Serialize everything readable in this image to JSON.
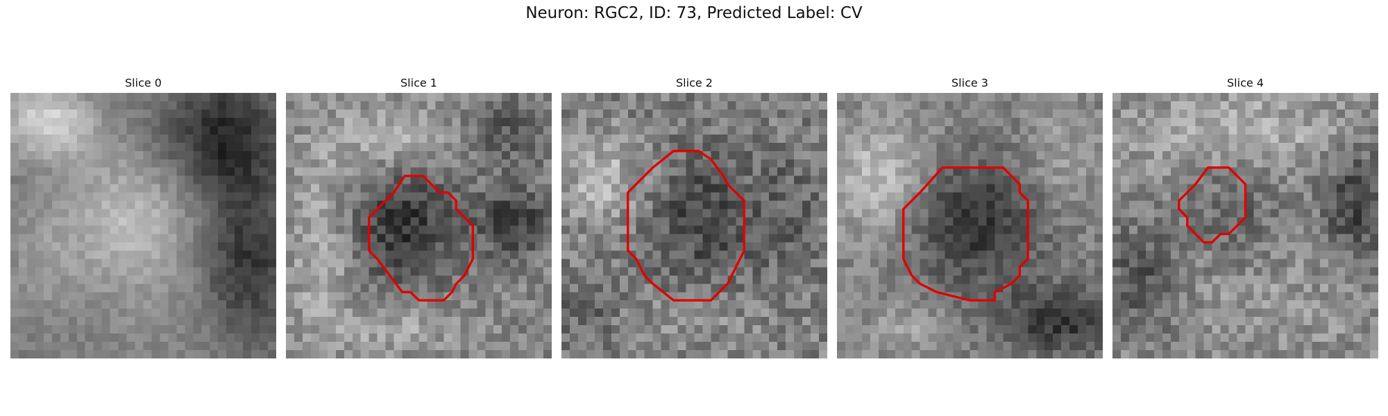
{
  "figure": {
    "title": "Neuron: RGC2, ID: 73, Predicted Label: CV",
    "outline_color": "#e00000"
  },
  "panels": [
    {
      "title": "Slice 0",
      "has_outline": false
    },
    {
      "title": "Slice 1",
      "has_outline": true
    },
    {
      "title": "Slice 2",
      "has_outline": true
    },
    {
      "title": "Slice 3",
      "has_outline": true
    },
    {
      "title": "Slice 4",
      "has_outline": true
    }
  ]
}
